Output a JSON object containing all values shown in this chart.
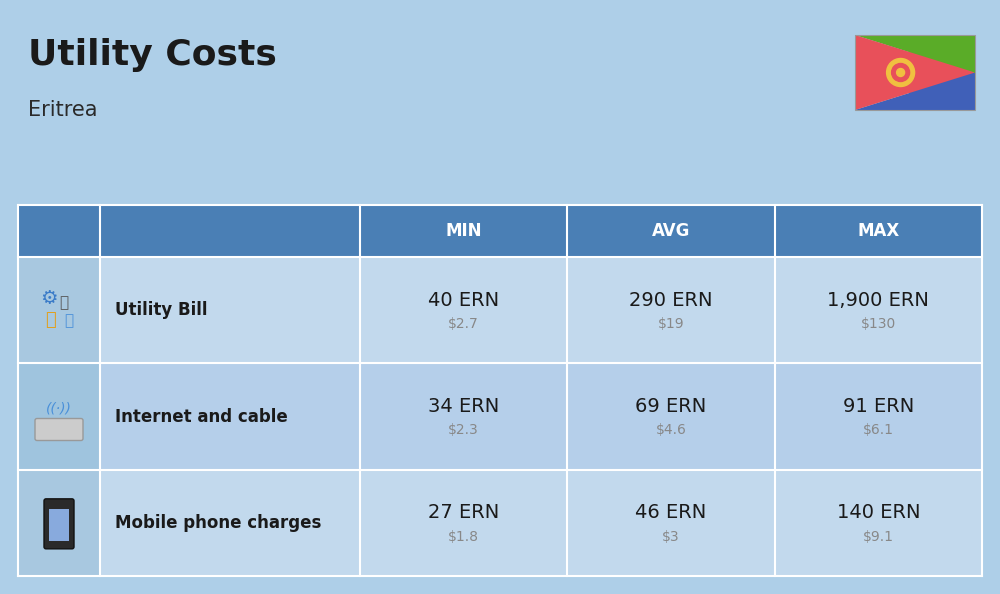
{
  "title": "Utility Costs",
  "subtitle": "Eritrea",
  "background_color": "#aecfe8",
  "header_bg_color": "#4a7fb5",
  "header_text_color": "#ffffff",
  "row_bg_color_1": "#c2d9ed",
  "row_bg_color_2": "#b5cfea",
  "icon_bg_color_1": "#a8c8e0",
  "icon_bg_color_2": "#9fc4de",
  "columns": [
    "MIN",
    "AVG",
    "MAX"
  ],
  "rows": [
    {
      "name": "Utility Bill",
      "min_ern": "40 ERN",
      "min_usd": "$2.7",
      "avg_ern": "290 ERN",
      "avg_usd": "$19",
      "max_ern": "1,900 ERN",
      "max_usd": "$130",
      "icon": "utility"
    },
    {
      "name": "Internet and cable",
      "min_ern": "34 ERN",
      "min_usd": "$2.3",
      "avg_ern": "69 ERN",
      "avg_usd": "$4.6",
      "max_ern": "91 ERN",
      "max_usd": "$6.1",
      "icon": "internet"
    },
    {
      "name": "Mobile phone charges",
      "min_ern": "27 ERN",
      "min_usd": "$1.8",
      "avg_ern": "46 ERN",
      "avg_usd": "$3",
      "max_ern": "140 ERN",
      "max_usd": "$9.1",
      "icon": "mobile"
    }
  ],
  "flag_green": "#5aac28",
  "flag_red": "#e8505a",
  "flag_blue": "#4060b8",
  "flag_emblem": "#f0c040",
  "title_fontsize": 26,
  "subtitle_fontsize": 15,
  "header_fontsize": 12,
  "cell_ern_fontsize": 14,
  "cell_usd_fontsize": 10,
  "row_label_fontsize": 12,
  "white_line_color": "#ffffff"
}
